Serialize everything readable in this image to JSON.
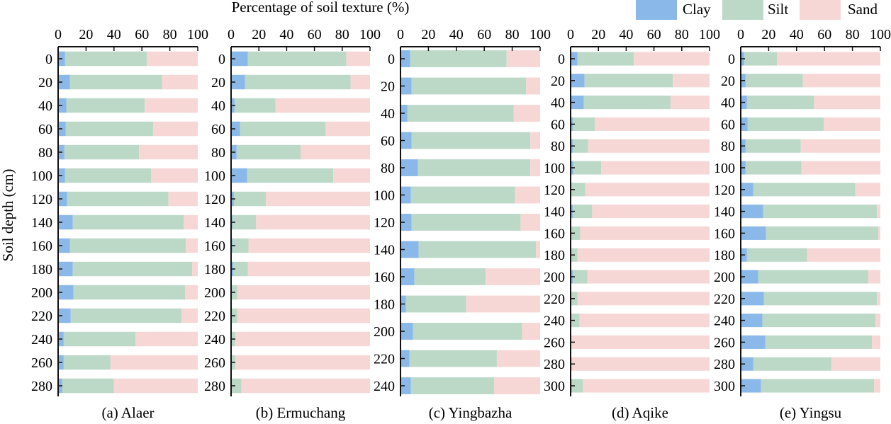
{
  "chart_data": {
    "type": "bar",
    "orientation": "horizontal-stacked",
    "title": "Percentage of soil texture (%)",
    "xlabel": "Percentage of soil texture (%)",
    "ylabel": "Soil depth (cm)",
    "xlim": [
      0,
      100
    ],
    "x_ticks": [
      "0",
      "20",
      "40",
      "60",
      "80",
      "100"
    ],
    "grid": false,
    "legend": {
      "placement": "top-right",
      "entries": [
        {
          "name": "Clay",
          "color": "#8ab9e9"
        },
        {
          "name": "Silt",
          "color": "#bcd9c8"
        },
        {
          "name": "Sand",
          "color": "#f7d7d5"
        }
      ]
    },
    "series_names": [
      "Clay",
      "Silt",
      "Sand"
    ],
    "panels": [
      {
        "label": "(a) Alaer",
        "depths": [
          "0",
          "20",
          "40",
          "60",
          "80",
          "100",
          "120",
          "140",
          "160",
          "180",
          "200",
          "220",
          "240",
          "260",
          "280"
        ],
        "clay": [
          5,
          8.5,
          6,
          5.5,
          4.5,
          5,
          6.5,
          10.5,
          8.5,
          10.5,
          11,
          9,
          4,
          4,
          3
        ],
        "silt": [
          58.5,
          66,
          56,
          62.5,
          53.5,
          61.5,
          72.5,
          79.5,
          83,
          85.5,
          80,
          79.5,
          51.5,
          33.5,
          37
        ],
        "sand": [
          36.5,
          25.5,
          38,
          32,
          42,
          33.5,
          21,
          10,
          8.5,
          4,
          9,
          11.5,
          44.5,
          62.5,
          60
        ]
      },
      {
        "label": "(b) Ermuchang",
        "depths": [
          "0",
          "20",
          "40",
          "60",
          "80",
          "100",
          "120",
          "140",
          "160",
          "180",
          "200",
          "220",
          "240",
          "260",
          "280"
        ],
        "clay": [
          12,
          10,
          2.5,
          6.5,
          4,
          11.5,
          2,
          1,
          1,
          1.5,
          0,
          0,
          0,
          0,
          0
        ],
        "silt": [
          71,
          76,
          29.5,
          61.5,
          46,
          62,
          23,
          17,
          11.5,
          10.5,
          4.5,
          4.5,
          3,
          3,
          7.5
        ],
        "sand": [
          17,
          14,
          68,
          32,
          50,
          26.5,
          75,
          82,
          87.5,
          88,
          95.5,
          95.5,
          97,
          97,
          92.5
        ]
      },
      {
        "label": "(c) Yingbazha",
        "depths": [
          "0",
          "20",
          "40",
          "60",
          "80",
          "100",
          "120",
          "140",
          "160",
          "180",
          "200",
          "220",
          "240"
        ],
        "clay": [
          7,
          8,
          5,
          8,
          12.5,
          7.5,
          8,
          13,
          10,
          4,
          9,
          6.5,
          7.5
        ],
        "silt": [
          69,
          82,
          76,
          85,
          80.5,
          74.5,
          78,
          84,
          51,
          43,
          78,
          62.5,
          59.5
        ],
        "sand": [
          24,
          10,
          19,
          7,
          7,
          18,
          14,
          3,
          39,
          53,
          13,
          31,
          33
        ]
      },
      {
        "label": "(d) Aqike",
        "depths": [
          "0",
          "20",
          "40",
          "60",
          "80",
          "100",
          "120",
          "140",
          "160",
          "180",
          "200",
          "220",
          "240",
          "260",
          "280",
          "300"
        ],
        "clay": [
          5,
          10,
          9.5,
          1.5,
          1.5,
          2,
          0.5,
          1.5,
          0,
          0,
          1.5,
          0,
          0,
          0,
          0,
          1
        ],
        "silt": [
          40.5,
          63.5,
          62.5,
          16,
          11,
          20,
          10,
          14,
          7,
          5,
          10.5,
          5,
          6.5,
          0,
          1,
          8
        ],
        "sand": [
          54.5,
          26.5,
          28,
          82.5,
          87.5,
          78,
          89.5,
          84.5,
          93,
          95,
          88,
          95,
          93.5,
          100,
          99,
          91
        ]
      },
      {
        "label": "(e) Yingsu",
        "depths": [
          "0",
          "20",
          "40",
          "60",
          "80",
          "100",
          "120",
          "140",
          "160",
          "180",
          "200",
          "220",
          "240",
          "260",
          "280",
          "300"
        ],
        "clay": [
          2.5,
          3.5,
          4.5,
          5,
          3.5,
          3.5,
          9,
          16,
          18,
          4.5,
          12.5,
          16.5,
          15.5,
          17.5,
          9,
          14.5
        ],
        "silt": [
          23.5,
          41,
          48,
          54.5,
          39.5,
          40,
          73,
          81.5,
          80.5,
          43,
          79,
          81,
          81,
          76.5,
          56,
          81
        ],
        "sand": [
          74,
          55.5,
          47.5,
          40.5,
          57,
          56.5,
          18,
          2.5,
          1.5,
          52.5,
          8.5,
          2.5,
          3.5,
          6,
          35,
          4.5
        ]
      }
    ]
  }
}
